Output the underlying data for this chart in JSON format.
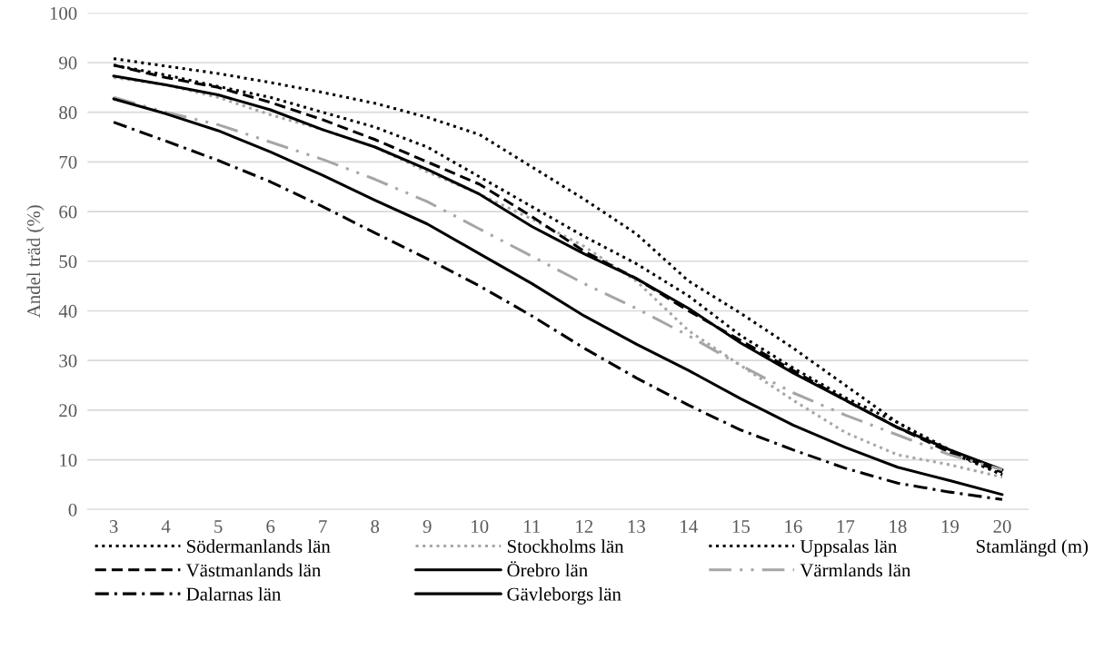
{
  "chart_data": {
    "type": "line",
    "ylabel": "Andel träd (%)",
    "xlabel": "Stamlängd (m)",
    "categories": [
      "3",
      "4",
      "5",
      "6",
      "7",
      "8",
      "9",
      "10",
      "11",
      "12",
      "13",
      "14",
      "15",
      "16",
      "17",
      "18",
      "19",
      "20"
    ],
    "ylim": [
      0,
      100
    ],
    "yticks": [
      0,
      10,
      20,
      30,
      40,
      50,
      60,
      70,
      80,
      90,
      100
    ],
    "grid": "y",
    "legend": "bottom",
    "series": [
      {
        "name": "Södermanlands län",
        "color": "#000000",
        "line_style": "dotted",
        "values": [
          89.5,
          87.5,
          85.2,
          83,
          80,
          77,
          73,
          67,
          61,
          55,
          49.5,
          43,
          35,
          28.5,
          22.5,
          17.5,
          12,
          7
        ]
      },
      {
        "name": "Stockholms län",
        "color": "#a6a6a6",
        "line_style": "dotted",
        "values": [
          87,
          85.5,
          83,
          79.5,
          76.5,
          73,
          68,
          63.5,
          58.5,
          53,
          46,
          36,
          29,
          22,
          15.5,
          11,
          9,
          6.5
        ]
      },
      {
        "name": "Uppsalas län",
        "color": "#000000",
        "line_style": "dotted",
        "values": [
          90.8,
          89.3,
          87.8,
          86,
          84,
          81.8,
          79,
          75.5,
          69,
          62.5,
          55.5,
          46,
          39.5,
          32.5,
          25,
          17.5,
          11.5,
          7
        ]
      },
      {
        "name": "Västmanlands län",
        "color": "#000000",
        "line_style": "dashed",
        "values": [
          89.5,
          87,
          85,
          82,
          78.5,
          74.5,
          70,
          65.5,
          59,
          52,
          46.5,
          40,
          34,
          28,
          22,
          16.5,
          11.5,
          7.5
        ]
      },
      {
        "name": "Örebro län",
        "color": "#000000",
        "line_style": "solid",
        "values": [
          87.3,
          85.5,
          83.5,
          80.5,
          76.5,
          73,
          68.5,
          63.5,
          57,
          51.5,
          46.5,
          40.5,
          33.5,
          27.5,
          22,
          16.5,
          12,
          8
        ]
      },
      {
        "name": "Värmlands län",
        "color": "#a6a6a6",
        "line_style": "dashdotdot",
        "values": [
          83,
          80,
          77.5,
          74,
          70.5,
          66.5,
          62,
          56.5,
          51,
          45.5,
          40.5,
          35,
          29,
          23.5,
          19,
          15,
          11,
          8
        ]
      },
      {
        "name": "Dalarnas län",
        "color": "#000000",
        "line_style": "dashdot",
        "values": [
          78,
          74.2,
          70.3,
          66,
          61,
          55.7,
          50.5,
          45,
          39,
          32.5,
          26.5,
          21,
          16,
          12,
          8.3,
          5.3,
          3.5,
          2
        ]
      },
      {
        "name": "Gävleborgs län",
        "color": "#000000",
        "line_style": "solid",
        "values": [
          82.7,
          79.7,
          76.3,
          72,
          67.3,
          62.3,
          57.5,
          51.5,
          45.5,
          39,
          33.3,
          28,
          22.3,
          17,
          12.5,
          8.5,
          5.8,
          3
        ]
      }
    ]
  }
}
